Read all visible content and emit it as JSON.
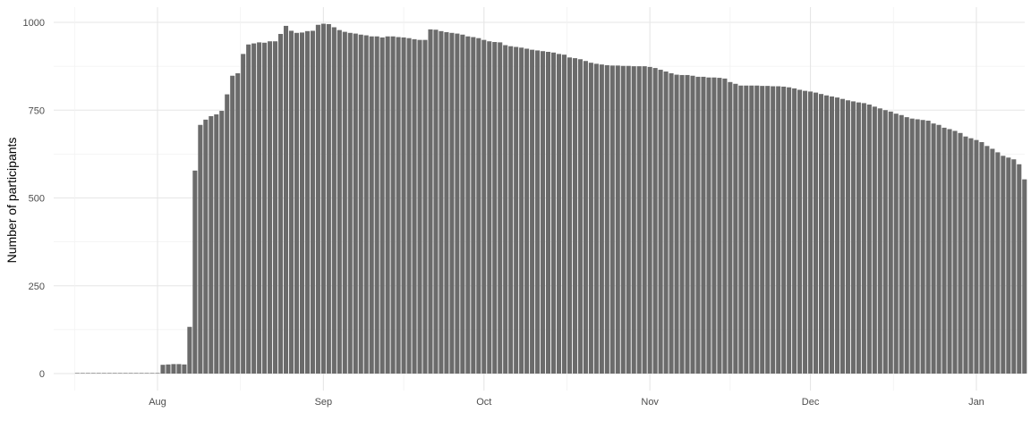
{
  "chart_data": {
    "type": "bar",
    "title": "",
    "xlabel": "",
    "ylabel": "Number of participants",
    "ylim": [
      0,
      1000
    ],
    "y_ticks": [
      "0",
      "250",
      "500",
      "750",
      "1000"
    ],
    "x_ticks": [
      {
        "label": "Aug",
        "date": "2020-08-01"
      },
      {
        "label": "Sep",
        "date": "2020-09-01"
      },
      {
        "label": "Oct",
        "date": "2020-10-01"
      },
      {
        "label": "Nov",
        "date": "2020-11-01"
      },
      {
        "label": "Dec",
        "date": "2020-12-01"
      },
      {
        "label": "Jan",
        "date": "2021-01-01"
      }
    ],
    "grid": true,
    "bar_color": "#6b6b6b",
    "start_date": "2020-07-17",
    "values": [
      1,
      1,
      1,
      1,
      1,
      1,
      1,
      1,
      1,
      1,
      1,
      1,
      1,
      1,
      1,
      1,
      25,
      26,
      27,
      27,
      26,
      133,
      578,
      708,
      723,
      733,
      738,
      748,
      795,
      848,
      855,
      910,
      937,
      940,
      943,
      942,
      946,
      946,
      967,
      990,
      976,
      970,
      971,
      975,
      976,
      993,
      996,
      995,
      986,
      978,
      973,
      970,
      968,
      965,
      963,
      960,
      960,
      957,
      960,
      960,
      958,
      957,
      955,
      952,
      950,
      950,
      980,
      979,
      975,
      972,
      970,
      968,
      965,
      960,
      958,
      955,
      950,
      946,
      944,
      943,
      935,
      932,
      930,
      928,
      925,
      922,
      920,
      918,
      916,
      914,
      910,
      908,
      900,
      898,
      895,
      890,
      885,
      882,
      880,
      878,
      877,
      877,
      876,
      876,
      875,
      875,
      875,
      873,
      870,
      865,
      860,
      855,
      851,
      850,
      850,
      848,
      845,
      845,
      843,
      843,
      842,
      840,
      830,
      825,
      820,
      820,
      820,
      820,
      819,
      819,
      818,
      818,
      817,
      815,
      812,
      808,
      805,
      803,
      800,
      796,
      792,
      789,
      786,
      782,
      778,
      775,
      772,
      770,
      766,
      760,
      755,
      750,
      746,
      740,
      736,
      730,
      726,
      724,
      722,
      720,
      712,
      708,
      700,
      696,
      691,
      685,
      675,
      670,
      665,
      659,
      648,
      640,
      630,
      620,
      615,
      610,
      596,
      553
    ]
  }
}
